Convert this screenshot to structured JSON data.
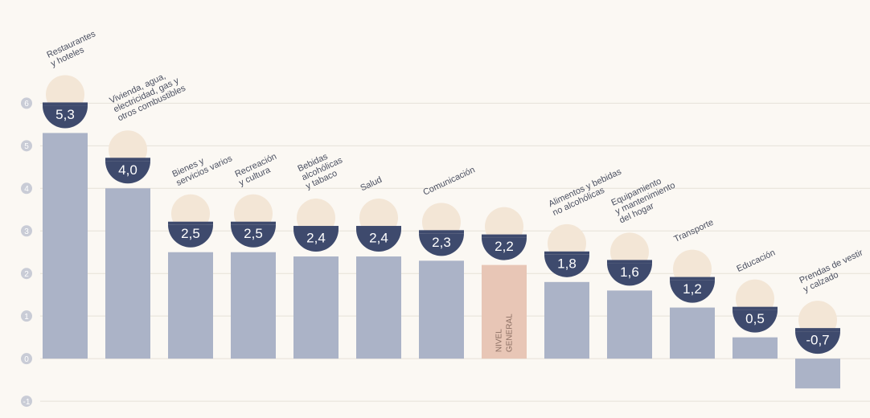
{
  "chart_data": {
    "type": "bar",
    "categories": [
      [
        "Restaurantes",
        "y hoteles"
      ],
      [
        "Vivienda, agua,",
        "electricidad, gas y",
        "otros combustibles"
      ],
      [
        "Bienes y",
        "servicios varios"
      ],
      [
        "Recreación",
        "y cultura"
      ],
      [
        "Bebidas",
        "alcohólicas",
        "y tabaco"
      ],
      [
        "Salud"
      ],
      [
        "Comunicación"
      ],
      [
        "NIVEL",
        "GENERAL"
      ],
      [
        "Alimentos y bebidas",
        "no alcohólicas"
      ],
      [
        "Equipamiento",
        "y mantenimiento",
        "del hogar"
      ],
      [
        "Transporte"
      ],
      [
        "Educación"
      ],
      [
        "Prendas de vestir",
        "y calzado"
      ]
    ],
    "values": [
      5.3,
      4.0,
      2.5,
      2.5,
      2.4,
      2.4,
      2.3,
      2.2,
      1.8,
      1.6,
      1.2,
      0.5,
      -0.7
    ],
    "value_labels": [
      "5,3",
      "4,0",
      "2,5",
      "2,5",
      "2,4",
      "2,4",
      "2,3",
      "2,2",
      "1,8",
      "1,6",
      "1,2",
      "0,5",
      "-0,7"
    ],
    "color": "#abb3c7",
    "highlight_color": "#e8c6b6",
    "ylim": [
      -1.3,
      6.8
    ],
    "yticks": [
      -1,
      0,
      1,
      2,
      3,
      4,
      5,
      6
    ],
    "grid": true
  }
}
